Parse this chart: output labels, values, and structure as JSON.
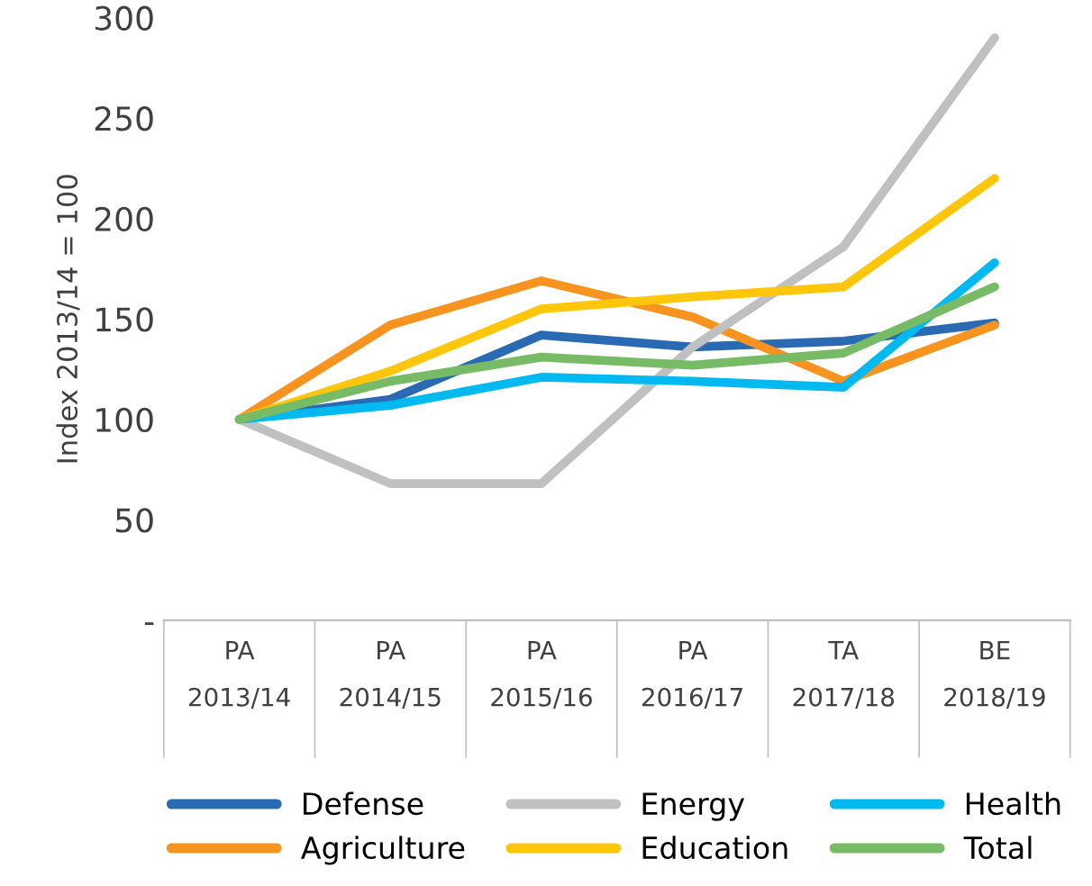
{
  "chart_data": {
    "type": "line",
    "ylabel": "Index 2013/14 = 100",
    "categories": [
      "PA\n2013/14",
      "PA\n2014/15",
      "PA\n2015/16",
      "PA\n2016/17",
      "TA\n2017/18",
      "BE\n2018/19"
    ],
    "series": [
      {
        "name": "Defense",
        "color": "#2a6ab3",
        "values": [
          100,
          110,
          142,
          136,
          139,
          148
        ]
      },
      {
        "name": "Agriculture",
        "color": "#f7931e",
        "values": [
          100,
          147,
          169,
          151,
          119,
          147
        ]
      },
      {
        "name": "Energy",
        "color": "#bfc0c2",
        "values": [
          100,
          68,
          68,
          136,
          186,
          290
        ]
      },
      {
        "name": "Education",
        "color": "#ffc60b",
        "values": [
          100,
          124,
          155,
          161,
          166,
          220
        ]
      },
      {
        "name": "Health",
        "color": "#00b9f0",
        "values": [
          100,
          107,
          121,
          119,
          116,
          178
        ]
      },
      {
        "name": "Total",
        "color": "#77bb66",
        "values": [
          100,
          119,
          131,
          127,
          133,
          166
        ]
      }
    ],
    "ylim": [
      0,
      300
    ],
    "yticks": [
      {
        "value": 0,
        "label": "-"
      },
      50,
      100,
      150,
      200,
      250,
      300
    ],
    "grid": false,
    "legend": "bottom",
    "marker": "none",
    "line_style": "solid"
  }
}
